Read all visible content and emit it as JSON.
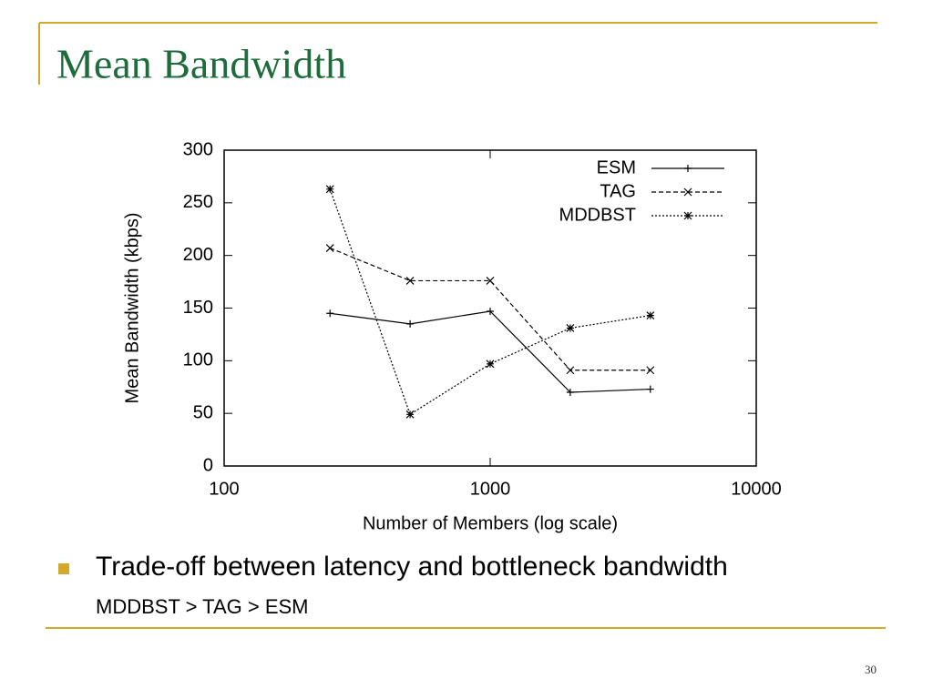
{
  "title": "Mean Bandwidth",
  "bullet": "Trade-off between latency and bottleneck bandwidth",
  "sub_bullet": "MDDBST > TAG > ESM",
  "page_number": "30",
  "chart_data": {
    "type": "line",
    "x_label": "Number of Members (log scale)",
    "y_label": "Mean Bandwidth (kbps)",
    "x": [
      250,
      500,
      1000,
      2000,
      4000
    ],
    "xlim": [
      100,
      10000
    ],
    "xticks": [
      100,
      1000,
      10000
    ],
    "xscale": "log",
    "ylim": [
      0,
      300
    ],
    "yticks": [
      0,
      50,
      100,
      150,
      200,
      250,
      300
    ],
    "legend": "upper right",
    "series": [
      {
        "name": "ESM",
        "color": "#000000",
        "style": "solid",
        "marker": "plus",
        "values": [
          145,
          135,
          147,
          70,
          73
        ]
      },
      {
        "name": "TAG",
        "color": "#000000",
        "style": "dashed",
        "marker": "cross",
        "values": [
          207,
          176,
          176,
          91,
          91
        ]
      },
      {
        "name": "MDDBST",
        "color": "#000000",
        "style": "dotted",
        "marker": "star",
        "values": [
          263,
          49,
          97,
          131,
          143
        ]
      }
    ]
  }
}
